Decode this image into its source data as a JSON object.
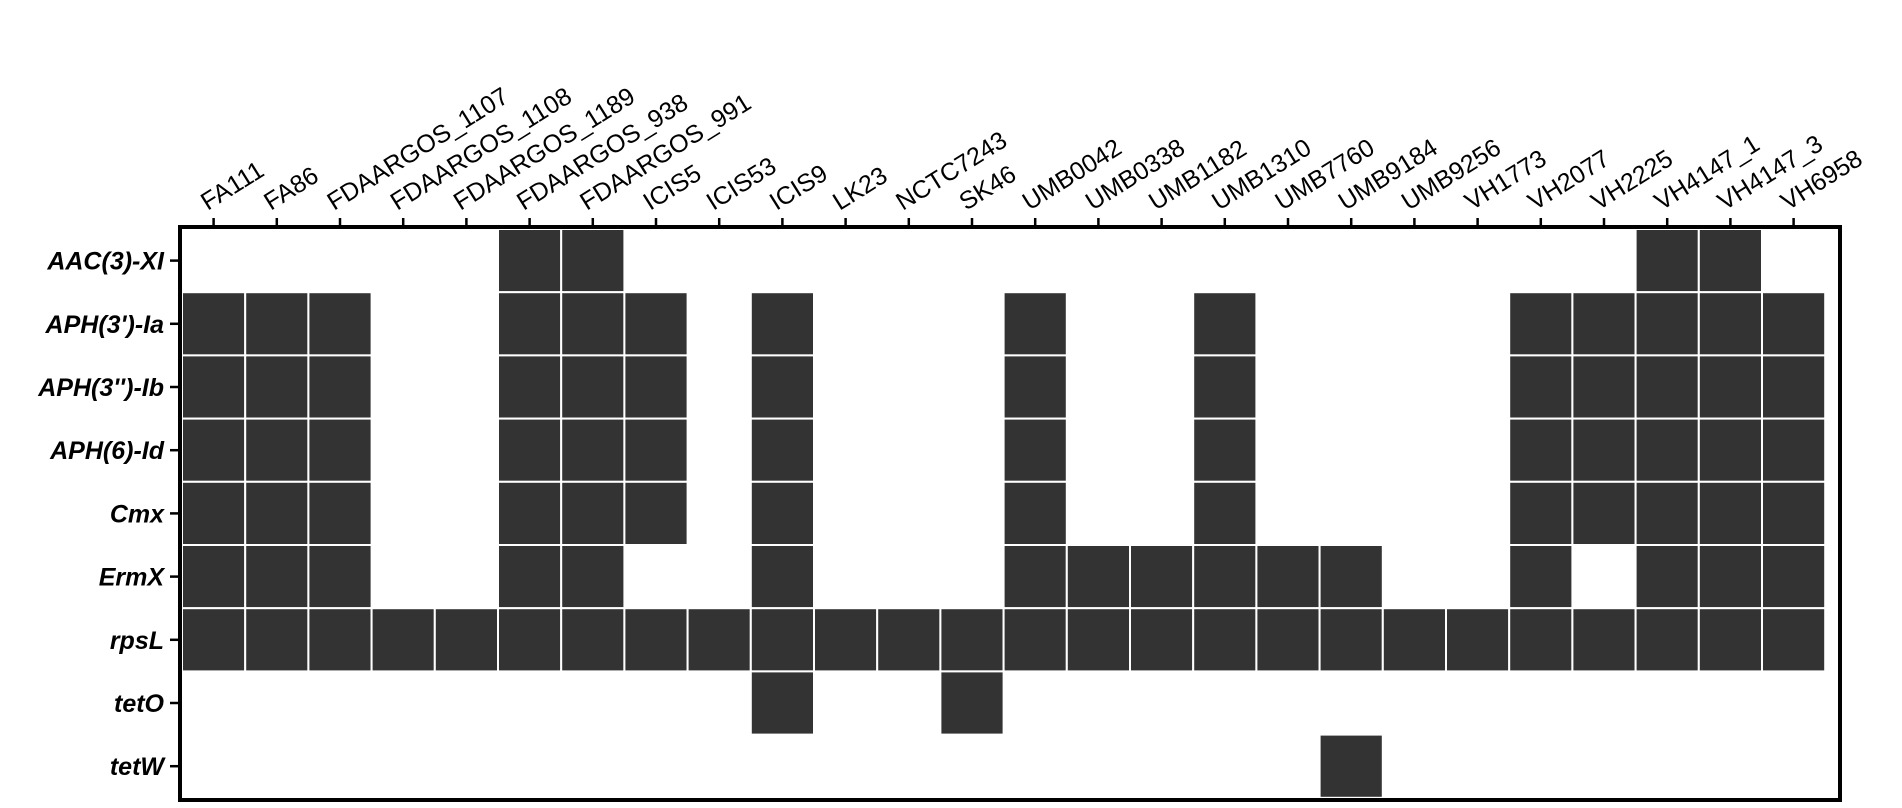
{
  "chart_data": {
    "type": "heatmap",
    "title": "",
    "xlabel": "",
    "ylabel": "",
    "columns": [
      "FA111",
      "FA86",
      "FDAARGOS_1107",
      "FDAARGOS_1108",
      "FDAARGOS_1189",
      "FDAARGOS_938",
      "FDAARGOS_991",
      "ICIS5",
      "ICIS53",
      "ICIS9",
      "LK23",
      "NCTC7243",
      "SK46",
      "UMB0042",
      "UMB0338",
      "UMB1182",
      "UMB1310",
      "UMB7760",
      "UMB9184",
      "UMB9256",
      "VH1773",
      "VH2077",
      "VH2225",
      "VH4147_1",
      "VH4147_3",
      "VH6958"
    ],
    "rows": [
      "AAC(3)-XI",
      "APH(3')-Ia",
      "APH(3'')-Ib",
      "APH(6)-Id",
      "Cmx",
      "ErmX",
      "rpsL",
      "tetO",
      "tetW"
    ],
    "values": [
      [
        0,
        0,
        0,
        0,
        0,
        1,
        1,
        0,
        0,
        0,
        0,
        0,
        0,
        0,
        0,
        0,
        0,
        0,
        0,
        0,
        0,
        0,
        0,
        1,
        1,
        0
      ],
      [
        1,
        1,
        1,
        0,
        0,
        1,
        1,
        1,
        0,
        1,
        0,
        0,
        0,
        1,
        0,
        0,
        1,
        0,
        0,
        0,
        0,
        1,
        1,
        1,
        1,
        1
      ],
      [
        1,
        1,
        1,
        0,
        0,
        1,
        1,
        1,
        0,
        1,
        0,
        0,
        0,
        1,
        0,
        0,
        1,
        0,
        0,
        0,
        0,
        1,
        1,
        1,
        1,
        1
      ],
      [
        1,
        1,
        1,
        0,
        0,
        1,
        1,
        1,
        0,
        1,
        0,
        0,
        0,
        1,
        0,
        0,
        1,
        0,
        0,
        0,
        0,
        1,
        1,
        1,
        1,
        1
      ],
      [
        1,
        1,
        1,
        0,
        0,
        1,
        1,
        1,
        0,
        1,
        0,
        0,
        0,
        1,
        0,
        0,
        1,
        0,
        0,
        0,
        0,
        1,
        1,
        1,
        1,
        1
      ],
      [
        1,
        1,
        1,
        0,
        0,
        1,
        1,
        0,
        0,
        1,
        0,
        0,
        0,
        1,
        1,
        1,
        1,
        1,
        1,
        0,
        0,
        1,
        0,
        1,
        1,
        1
      ],
      [
        1,
        1,
        1,
        1,
        1,
        1,
        1,
        1,
        1,
        1,
        1,
        1,
        1,
        1,
        1,
        1,
        1,
        1,
        1,
        1,
        1,
        1,
        1,
        1,
        1,
        1
      ],
      [
        0,
        0,
        0,
        0,
        0,
        0,
        0,
        0,
        0,
        1,
        0,
        0,
        1,
        0,
        0,
        0,
        0,
        0,
        0,
        0,
        0,
        0,
        0,
        0,
        0,
        0
      ],
      [
        0,
        0,
        0,
        0,
        0,
        0,
        0,
        0,
        0,
        0,
        0,
        0,
        0,
        0,
        0,
        0,
        0,
        0,
        1,
        0,
        0,
        0,
        0,
        0,
        0,
        0
      ]
    ],
    "legend": "none",
    "grid": false
  },
  "colors": {
    "present": "#333333",
    "absent": "#ffffff",
    "frame": "#000000"
  }
}
